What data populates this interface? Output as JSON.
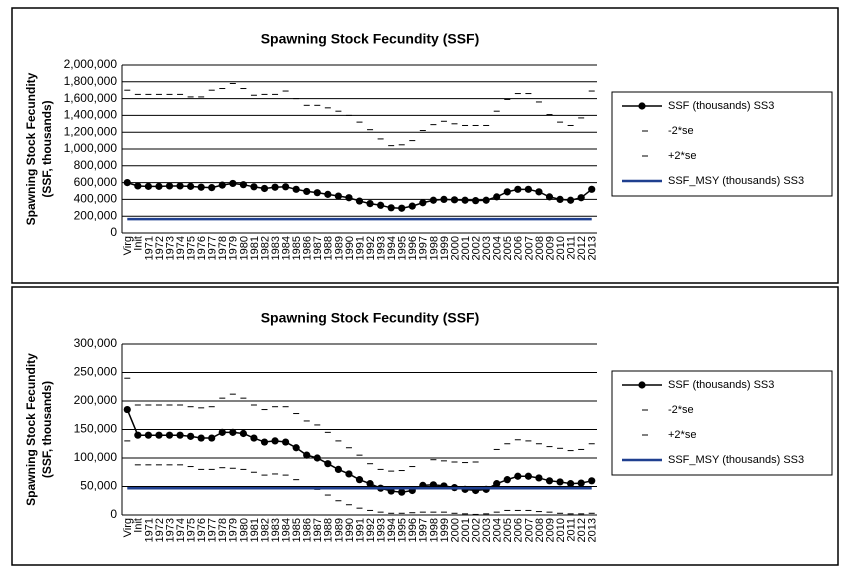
{
  "chart_data": [
    {
      "type": "line",
      "title": "Spawning Stock Fecundity (SSF)",
      "ylabel": [
        "Spawning Stock Fecundity",
        "(SSF, thousands)"
      ],
      "categories": [
        "Virg",
        "Init",
        "1971",
        "1972",
        "1973",
        "1974",
        "1975",
        "1976",
        "1977",
        "1978",
        "1979",
        "1980",
        "1981",
        "1982",
        "1983",
        "1984",
        "1985",
        "1986",
        "1987",
        "1988",
        "1989",
        "1990",
        "1991",
        "1992",
        "1993",
        "1994",
        "1995",
        "1996",
        "1997",
        "1998",
        "1999",
        "2000",
        "2001",
        "2002",
        "2003",
        "2004",
        "2005",
        "2006",
        "2007",
        "2008",
        "2009",
        "2010",
        "2011",
        "2012",
        "2013"
      ],
      "ylim": [
        0,
        2000000
      ],
      "yticks": [
        0,
        {
          "value": 200000,
          "label": "200,000"
        },
        {
          "value": 400000,
          "label": "400,000"
        },
        {
          "value": 600000,
          "label": "600,000"
        },
        {
          "value": 800000,
          "label": "800,000"
        },
        {
          "value": 1000000,
          "label": "1,000,000"
        },
        {
          "value": 1200000,
          "label": "1,200,000"
        },
        {
          "value": 1400000,
          "label": "1,400,000"
        },
        {
          "value": 1600000,
          "label": "1,600,000"
        },
        {
          "value": 1800000,
          "label": "1,800,000"
        },
        {
          "value": 2000000,
          "label": "2,000,000"
        }
      ],
      "grid": true,
      "series": [
        {
          "name": "SSF (thousands) SS3",
          "color": "#000000",
          "style": "line-marker",
          "values": [
            600000,
            560000,
            555000,
            555000,
            560000,
            560000,
            555000,
            545000,
            540000,
            570000,
            590000,
            575000,
            550000,
            530000,
            545000,
            550000,
            520000,
            495000,
            480000,
            460000,
            440000,
            420000,
            380000,
            350000,
            330000,
            300000,
            295000,
            320000,
            360000,
            390000,
            400000,
            395000,
            390000,
            385000,
            390000,
            430000,
            490000,
            520000,
            520000,
            490000,
            430000,
            400000,
            390000,
            420000,
            520000
          ]
        },
        {
          "name": "-2*se",
          "color": "#000000",
          "style": "dash",
          "values": [
            null,
            null,
            null,
            null,
            null,
            null,
            null,
            null,
            null,
            null,
            null,
            null,
            null,
            null,
            null,
            null,
            null,
            null,
            null,
            null,
            null,
            null,
            null,
            null,
            null,
            null,
            null,
            null,
            null,
            null,
            null,
            null,
            null,
            null,
            null,
            null,
            null,
            null,
            null,
            null,
            null,
            null,
            null,
            null,
            null
          ]
        },
        {
          "name": "+2*se",
          "color": "#000000",
          "style": "dash",
          "values": [
            1700000,
            1650000,
            1650000,
            1650000,
            1650000,
            1650000,
            1620000,
            1620000,
            1700000,
            1720000,
            1780000,
            1720000,
            1640000,
            1650000,
            1650000,
            1690000,
            1600000,
            1520000,
            1520000,
            1490000,
            1450000,
            1400000,
            1320000,
            1230000,
            1120000,
            1040000,
            1050000,
            1100000,
            1220000,
            1290000,
            1330000,
            1300000,
            1280000,
            1280000,
            1280000,
            1450000,
            1590000,
            1660000,
            1660000,
            1560000,
            1410000,
            1320000,
            1280000,
            1370000,
            1690000
          ]
        },
        {
          "name": "SSF_MSY (thousands) SS3",
          "color": "#1f3f8f",
          "style": "line",
          "values": [
            165000,
            165000,
            165000,
            165000,
            165000,
            165000,
            165000,
            165000,
            165000,
            165000,
            165000,
            165000,
            165000,
            165000,
            165000,
            165000,
            165000,
            165000,
            165000,
            165000,
            165000,
            165000,
            165000,
            165000,
            165000,
            165000,
            165000,
            165000,
            165000,
            165000,
            165000,
            165000,
            165000,
            165000,
            165000,
            165000,
            165000,
            165000,
            165000,
            165000,
            165000,
            165000,
            165000,
            165000,
            165000
          ]
        }
      ]
    },
    {
      "type": "line",
      "title": "Spawning Stock Fecundity (SSF)",
      "ylabel": [
        "Spawning Stock Fecundity",
        "(SSF, thousands)"
      ],
      "categories": [
        "Virg",
        "Init",
        "1971",
        "1972",
        "1973",
        "1974",
        "1975",
        "1976",
        "1977",
        "1978",
        "1979",
        "1980",
        "1981",
        "1982",
        "1983",
        "1984",
        "1985",
        "1986",
        "1987",
        "1988",
        "1989",
        "1990",
        "1991",
        "1992",
        "1993",
        "1994",
        "1995",
        "1996",
        "1997",
        "1998",
        "1999",
        "2000",
        "2001",
        "2002",
        "2003",
        "2004",
        "2005",
        "2006",
        "2007",
        "2008",
        "2009",
        "2010",
        "2011",
        "2012",
        "2013"
      ],
      "ylim": [
        0,
        300000
      ],
      "yticks": [
        0,
        {
          "value": 50000,
          "label": "50,000"
        },
        {
          "value": 100000,
          "label": "100,000"
        },
        {
          "value": 150000,
          "label": "150,000"
        },
        {
          "value": 200000,
          "label": "200,000"
        },
        {
          "value": 250000,
          "label": "250,000"
        },
        {
          "value": 300000,
          "label": "300,000"
        }
      ],
      "grid": true,
      "series": [
        {
          "name": "SSF (thousands) SS3",
          "color": "#000000",
          "style": "line-marker",
          "values": [
            185000,
            140000,
            140000,
            140000,
            140000,
            140000,
            138000,
            135000,
            135000,
            145000,
            145000,
            143000,
            135000,
            128000,
            130000,
            128000,
            118000,
            105000,
            100000,
            90000,
            80000,
            72000,
            62000,
            55000,
            47000,
            42000,
            40000,
            43000,
            52000,
            53000,
            51000,
            48000,
            45000,
            43000,
            45000,
            55000,
            62000,
            68000,
            68000,
            65000,
            60000,
            58000,
            55000,
            56000,
            60000
          ]
        },
        {
          "name": "-2*se",
          "color": "#000000",
          "style": "dash",
          "values": [
            130000,
            88000,
            88000,
            88000,
            88000,
            88000,
            85000,
            80000,
            80000,
            83000,
            82000,
            80000,
            75000,
            70000,
            72000,
            70000,
            62000,
            50000,
            45000,
            35000,
            25000,
            18000,
            12000,
            8000,
            5000,
            3000,
            3000,
            4000,
            5000,
            5000,
            5000,
            3000,
            2000,
            1000,
            2000,
            5000,
            8000,
            8000,
            8000,
            6000,
            5000,
            3000,
            2000,
            2000,
            3000
          ]
        },
        {
          "name": "+2*se",
          "color": "#000000",
          "style": "dash",
          "values": [
            240000,
            193000,
            193000,
            193000,
            193000,
            193000,
            190000,
            188000,
            190000,
            205000,
            212000,
            205000,
            193000,
            185000,
            190000,
            190000,
            178000,
            165000,
            158000,
            145000,
            130000,
            118000,
            105000,
            90000,
            80000,
            77000,
            78000,
            85000,
            100000,
            97000,
            95000,
            93000,
            92000,
            93000,
            100000,
            115000,
            125000,
            132000,
            130000,
            125000,
            120000,
            117000,
            113000,
            115000,
            125000
          ]
        },
        {
          "name": "SSF_MSY (thousands) SS3",
          "color": "#1f3f8f",
          "style": "line",
          "values": [
            47000,
            47000,
            47000,
            47000,
            47000,
            47000,
            47000,
            47000,
            47000,
            47000,
            47000,
            47000,
            47000,
            47000,
            47000,
            47000,
            47000,
            47000,
            47000,
            47000,
            47000,
            47000,
            47000,
            47000,
            47000,
            47000,
            47000,
            47000,
            47000,
            47000,
            47000,
            47000,
            47000,
            47000,
            47000,
            47000,
            47000,
            47000,
            47000,
            47000,
            47000,
            47000,
            47000,
            47000,
            47000
          ]
        }
      ]
    }
  ]
}
